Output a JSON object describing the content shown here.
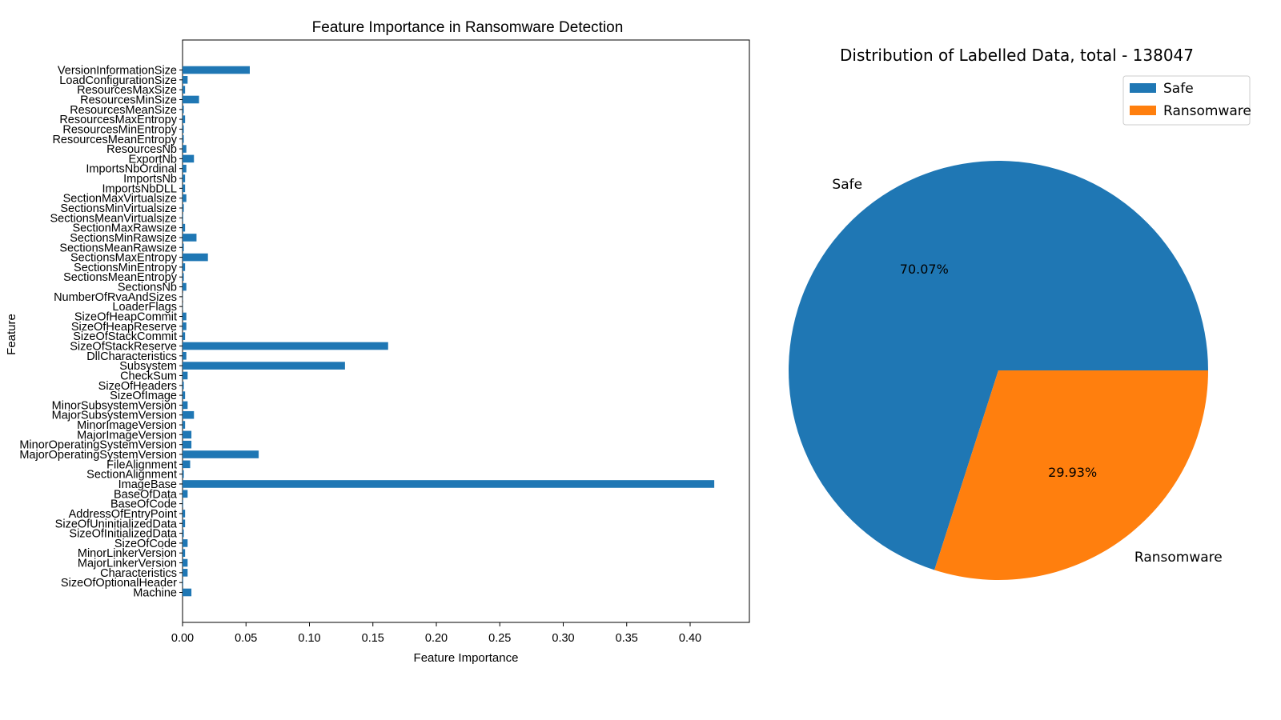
{
  "chart_data": [
    {
      "type": "bar",
      "orientation": "horizontal",
      "title": "Feature Importance in Ransomware Detection",
      "xlabel": "Feature Importance",
      "ylabel": "Feature",
      "xlim": [
        0,
        0.44
      ],
      "xticks": [
        "0.00",
        "0.05",
        "0.10",
        "0.15",
        "0.20",
        "0.25",
        "0.30",
        "0.35",
        "0.40"
      ],
      "grid": false,
      "color": "#1f77b4",
      "categories": [
        "Machine",
        "SizeOfOptionalHeader",
        "Characteristics",
        "MajorLinkerVersion",
        "MinorLinkerVersion",
        "SizeOfCode",
        "SizeOfInitializedData",
        "SizeOfUninitializedData",
        "AddressOfEntryPoint",
        "BaseOfCode",
        "BaseOfData",
        "ImageBase",
        "SectionAlignment",
        "FileAlignment",
        "MajorOperatingSystemVersion",
        "MinorOperatingSystemVersion",
        "MajorImageVersion",
        "MinorImageVersion",
        "MajorSubsystemVersion",
        "MinorSubsystemVersion",
        "SizeOfImage",
        "SizeOfHeaders",
        "CheckSum",
        "Subsystem",
        "DllCharacteristics",
        "SizeOfStackReserve",
        "SizeOfStackCommit",
        "SizeOfHeapReserve",
        "SizeOfHeapCommit",
        "LoaderFlags",
        "NumberOfRvaAndSizes",
        "SectionsNb",
        "SectionsMeanEntropy",
        "SectionsMinEntropy",
        "SectionsMaxEntropy",
        "SectionsMeanRawsize",
        "SectionsMinRawsize",
        "SectionMaxRawsize",
        "SectionsMeanVirtualsize",
        "SectionsMinVirtualsize",
        "SectionMaxVirtualsize",
        "ImportsNbDLL",
        "ImportsNb",
        "ImportsNbOrdinal",
        "ExportNb",
        "ResourcesNb",
        "ResourcesMeanEntropy",
        "ResourcesMinEntropy",
        "ResourcesMaxEntropy",
        "ResourcesMeanSize",
        "ResourcesMinSize",
        "ResourcesMaxSize",
        "LoadConfigurationSize",
        "VersionInformationSize"
      ],
      "values": [
        0.007,
        0.0005,
        0.004,
        0.004,
        0.002,
        0.004,
        0.001,
        0.002,
        0.002,
        0.0005,
        0.004,
        0.419,
        0.001,
        0.006,
        0.06,
        0.007,
        0.007,
        0.002,
        0.009,
        0.004,
        0.002,
        0.001,
        0.004,
        0.128,
        0.003,
        0.162,
        0.002,
        0.003,
        0.003,
        0.0002,
        0.0002,
        0.003,
        0.001,
        0.002,
        0.02,
        0.001,
        0.011,
        0.002,
        0.0005,
        0.001,
        0.003,
        0.002,
        0.002,
        0.003,
        0.009,
        0.003,
        0.001,
        0.001,
        0.002,
        0.001,
        0.013,
        0.002,
        0.004,
        0.053
      ]
    },
    {
      "type": "pie",
      "title": "Distribution of Labelled Data, total - 138047",
      "labels": [
        "Safe",
        "Ransomware"
      ],
      "values": [
        70.07,
        29.93
      ],
      "value_labels": [
        "70.07%",
        "29.93%"
      ],
      "colors": [
        "#1f77b4",
        "#ff7f0e"
      ],
      "legend": {
        "position": "top-right",
        "entries": [
          "Safe",
          "Ransomware"
        ]
      }
    }
  ]
}
